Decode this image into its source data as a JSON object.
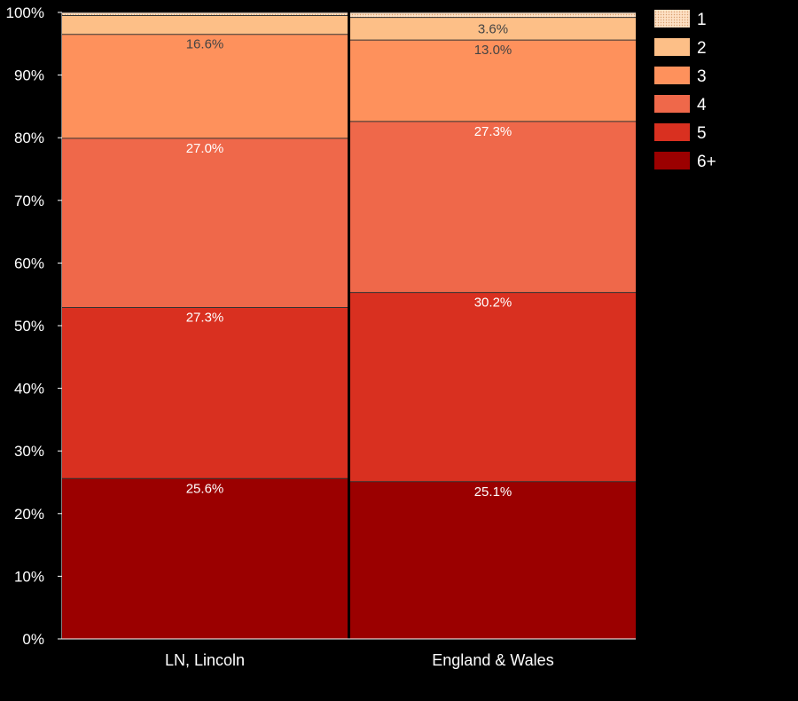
{
  "chart_data": {
    "type": "bar",
    "stacked": true,
    "percent": true,
    "categories": [
      "LN, Lincoln",
      "England & Wales"
    ],
    "series": [
      {
        "name": "6+",
        "color": "#9b0000",
        "label_color": "#ffffff",
        "values": [
          25.6,
          25.1
        ],
        "labels": [
          "25.6%",
          "25.1%"
        ]
      },
      {
        "name": "5",
        "color": "#d93020",
        "label_color": "#ffffff",
        "values": [
          27.3,
          30.2
        ],
        "labels": [
          "27.3%",
          "30.2%"
        ]
      },
      {
        "name": "4",
        "color": "#ef684a",
        "label_color": "#ffffff",
        "values": [
          27.0,
          27.3
        ],
        "labels": [
          "27.0%",
          "27.3%"
        ]
      },
      {
        "name": "3",
        "color": "#fe915c",
        "label_color": "#444444",
        "values": [
          16.6,
          13.0
        ],
        "labels": [
          "16.6%",
          "13.0%"
        ]
      },
      {
        "name": "2",
        "color": "#fdbf87",
        "label_color": "#444444",
        "values": [
          3.0,
          3.6
        ],
        "labels": [
          "",
          "3.6%"
        ]
      },
      {
        "name": "1",
        "color": "#fde0c4",
        "label_color": "#444444",
        "values": [
          0.5,
          0.5
        ],
        "labels": [
          "",
          ""
        ],
        "pattern": "dotted"
      }
    ],
    "ylim": [
      0,
      100
    ],
    "yticks": [
      "0%",
      "10%",
      "20%",
      "30%",
      "40%",
      "50%",
      "60%",
      "70%",
      "80%",
      "90%",
      "100%"
    ],
    "legend": {
      "position": "top-right",
      "order": [
        "1",
        "2",
        "3",
        "4",
        "5",
        "6+"
      ]
    },
    "grid": false,
    "background": "#000000"
  }
}
